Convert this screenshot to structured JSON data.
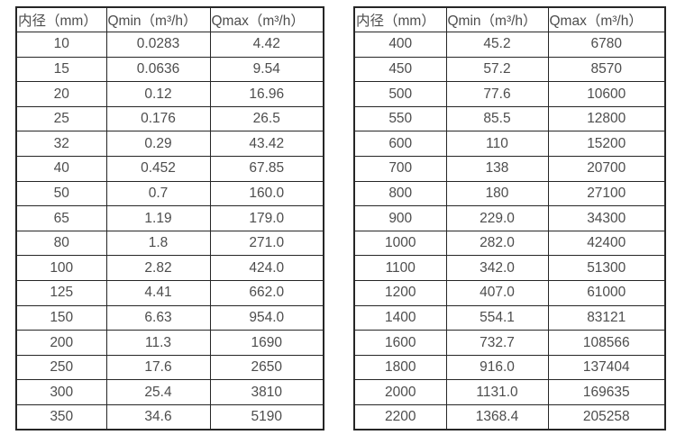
{
  "colors": {
    "text": "#4d4d4d",
    "border": "#262626",
    "background": "#ffffff"
  },
  "chart_data": [
    {
      "type": "table",
      "columns": [
        "内径（mm）",
        "Qmin（m³/h）",
        "Qmax（m³/h）"
      ],
      "rows": [
        [
          "10",
          "0.0283",
          "4.42"
        ],
        [
          "15",
          "0.0636",
          "9.54"
        ],
        [
          "20",
          "0.12",
          "16.96"
        ],
        [
          "25",
          "0.176",
          "26.5"
        ],
        [
          "32",
          "0.29",
          "43.42"
        ],
        [
          "40",
          "0.452",
          "67.85"
        ],
        [
          "50",
          "0.7",
          "160.0"
        ],
        [
          "65",
          "1.19",
          "179.0"
        ],
        [
          "80",
          "1.8",
          "271.0"
        ],
        [
          "100",
          "2.82",
          "424.0"
        ],
        [
          "125",
          "4.41",
          "662.0"
        ],
        [
          "150",
          "6.63",
          "954.0"
        ],
        [
          "200",
          "11.3",
          "1690"
        ],
        [
          "250",
          "17.6",
          "2650"
        ],
        [
          "300",
          "25.4",
          "3810"
        ],
        [
          "350",
          "34.6",
          "5190"
        ]
      ]
    },
    {
      "type": "table",
      "columns": [
        "内径（mm）",
        "Qmin（m³/h）",
        "Qmax（m³/h）"
      ],
      "rows": [
        [
          "400",
          "45.2",
          "6780"
        ],
        [
          "450",
          "57.2",
          "8570"
        ],
        [
          "500",
          "77.6",
          "10600"
        ],
        [
          "550",
          "85.5",
          "12800"
        ],
        [
          "600",
          "110",
          "15200"
        ],
        [
          "700",
          "138",
          "20700"
        ],
        [
          "800",
          "180",
          "27100"
        ],
        [
          "900",
          "229.0",
          "34300"
        ],
        [
          "1000",
          "282.0",
          "42400"
        ],
        [
          "1100",
          "342.0",
          "51300"
        ],
        [
          "1200",
          "407.0",
          "61000"
        ],
        [
          "1400",
          "554.1",
          "83121"
        ],
        [
          "1600",
          "732.7",
          "108566"
        ],
        [
          "1800",
          "916.0",
          "137404"
        ],
        [
          "2000",
          "1131.0",
          "169635"
        ],
        [
          "2200",
          "1368.4",
          "205258"
        ]
      ]
    }
  ]
}
